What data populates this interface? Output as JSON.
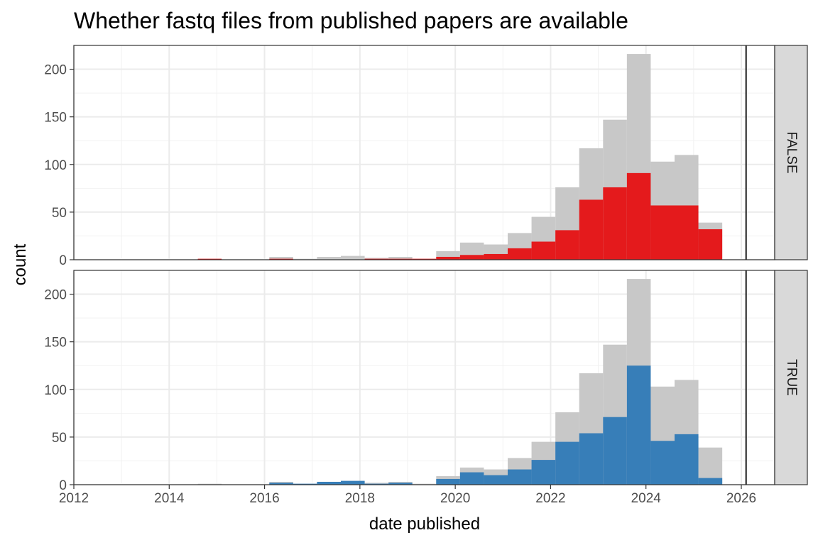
{
  "chart_data": {
    "type": "bar",
    "title": "Whether fastq files from published papers are available",
    "xlabel": "date published",
    "ylabel": "count",
    "xlim": [
      2012.0,
      2026.7
    ],
    "ylim": [
      0,
      225
    ],
    "x_ticks": [
      2012,
      2014,
      2016,
      2018,
      2020,
      2022,
      2024,
      2026
    ],
    "y_ticks": [
      0,
      50,
      100,
      150,
      200
    ],
    "grid": true,
    "bin_starts": [
      2014.6,
      2015.1,
      2015.6,
      2016.1,
      2016.6,
      2017.1,
      2017.6,
      2018.1,
      2018.6,
      2019.1,
      2019.6,
      2020.1,
      2020.6,
      2021.1,
      2021.6,
      2022.1,
      2022.6,
      2023.1,
      2023.6,
      2024.1,
      2024.6,
      2025.1
    ],
    "bin_width": 0.5,
    "total_counts": [
      1,
      0,
      0,
      3,
      1,
      3,
      4,
      2,
      3,
      1,
      9,
      18,
      16,
      28,
      45,
      76,
      117,
      147,
      216,
      103,
      110,
      39
    ],
    "facet_line_x": 2026.1,
    "panels": [
      {
        "strip": "FALSE",
        "color": "#e41a1c",
        "counts": [
          1,
          0,
          0,
          1,
          0,
          0,
          0,
          1,
          1,
          1,
          3,
          5,
          6,
          12,
          19,
          31,
          63,
          76,
          91,
          57,
          57,
          32
        ]
      },
      {
        "strip": "TRUE",
        "color": "#377eb8",
        "counts": [
          0,
          0,
          0,
          2,
          1,
          3,
          4,
          1,
          2,
          0,
          6,
          13,
          10,
          16,
          26,
          45,
          54,
          71,
          125,
          46,
          53,
          7
        ]
      }
    ],
    "background_color": "#c8c8c8"
  }
}
